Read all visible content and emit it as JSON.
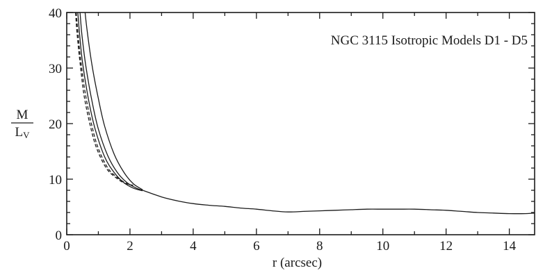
{
  "chart_data": {
    "type": "line",
    "annotation": "NGC 3115 Isotropic Models D1 - D5",
    "xlabel": "r (arcsec)",
    "ylabel_numerator": "M",
    "ylabel_denominator": "L",
    "ylabel_denominator_sub": "V",
    "xlim": [
      0,
      14.8
    ],
    "ylim": [
      0,
      40
    ],
    "xticks": [
      0,
      2,
      4,
      6,
      8,
      10,
      12,
      14
    ],
    "yticks": [
      0,
      10,
      20,
      30,
      40
    ],
    "series": [
      {
        "style": "solid",
        "x": [
          0.58,
          0.65,
          0.8,
          1.0,
          1.2,
          1.5,
          1.8,
          2.1,
          2.4
        ],
        "y": [
          40,
          36.5,
          30.5,
          24.5,
          19.5,
          14.5,
          11.3,
          9.2,
          8.1
        ]
      },
      {
        "style": "solid",
        "x": [
          0.42,
          0.48,
          0.6,
          0.8,
          1.0,
          1.3,
          1.6,
          1.9,
          2.2,
          2.4
        ],
        "y": [
          40,
          36,
          30.5,
          24,
          19,
          14.2,
          11.2,
          9.4,
          8.4,
          8.0
        ]
      },
      {
        "style": "solid",
        "x": [
          0.35,
          0.4,
          0.5,
          0.7,
          0.9,
          1.2,
          1.5,
          1.8,
          2.1,
          2.4
        ],
        "y": [
          40,
          36.5,
          31,
          24,
          19,
          14,
          11.2,
          9.4,
          8.4,
          7.9
        ]
      },
      {
        "style": "dashed",
        "x": [
          0.3,
          0.36,
          0.45,
          0.6,
          0.8,
          1.0,
          1.3,
          1.6,
          1.9,
          2.1
        ],
        "y": [
          40,
          36,
          31,
          25,
          19.5,
          15.5,
          12,
          10.3,
          9.2,
          8.9
        ]
      },
      {
        "style": "dashed",
        "x": [
          0.28,
          0.33,
          0.42,
          0.55,
          0.75,
          0.95,
          1.25,
          1.55,
          1.85,
          2.1
        ],
        "y": [
          40,
          36,
          31,
          25,
          19.5,
          15.5,
          12,
          10.3,
          9.2,
          8.9
        ]
      },
      {
        "style": "solid",
        "x": [
          2.4,
          3.0,
          3.5,
          4.0,
          4.5,
          5.0,
          5.5,
          6.0,
          6.5,
          7.0,
          7.5,
          8.0,
          8.5,
          9.0,
          9.5,
          10.0,
          10.5,
          11.0,
          11.5,
          12.0,
          12.5,
          13.0,
          13.5,
          14.0,
          14.5,
          14.8
        ],
        "y": [
          8.0,
          6.8,
          6.1,
          5.6,
          5.3,
          5.1,
          4.8,
          4.6,
          4.3,
          4.1,
          4.2,
          4.3,
          4.4,
          4.5,
          4.6,
          4.6,
          4.6,
          4.6,
          4.5,
          4.4,
          4.2,
          4.0,
          3.9,
          3.8,
          3.8,
          3.9
        ]
      }
    ]
  }
}
